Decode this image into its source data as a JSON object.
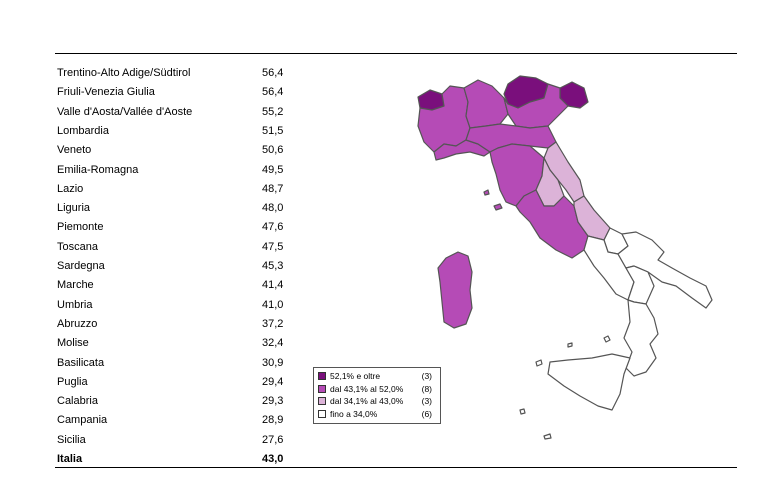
{
  "regions": [
    {
      "name": "Trentino-Alto Adige/Südtirol",
      "value": "56,4",
      "class": 0
    },
    {
      "name": "Friuli-Venezia Giulia",
      "value": "56,4",
      "class": 0
    },
    {
      "name": "Valle d'Aosta/Vallée d'Aoste",
      "value": "55,2",
      "class": 0
    },
    {
      "name": "Lombardia",
      "value": "51,5",
      "class": 1
    },
    {
      "name": "Veneto",
      "value": "50,6",
      "class": 1
    },
    {
      "name": "Emilia-Romagna",
      "value": "49,5",
      "class": 1
    },
    {
      "name": "Lazio",
      "value": "48,7",
      "class": 1
    },
    {
      "name": "Liguria",
      "value": "48,0",
      "class": 1
    },
    {
      "name": "Piemonte",
      "value": "47,6",
      "class": 1
    },
    {
      "name": "Toscana",
      "value": "47,5",
      "class": 1
    },
    {
      "name": "Sardegna",
      "value": "45,3",
      "class": 1
    },
    {
      "name": "Marche",
      "value": "41,4",
      "class": 2
    },
    {
      "name": "Umbria",
      "value": "41,0",
      "class": 2
    },
    {
      "name": "Abruzzo",
      "value": "37,2",
      "class": 2
    },
    {
      "name": "Molise",
      "value": "32,4",
      "class": 3
    },
    {
      "name": "Basilicata",
      "value": "30,9",
      "class": 3
    },
    {
      "name": "Puglia",
      "value": "29,4",
      "class": 3
    },
    {
      "name": "Calabria",
      "value": "29,3",
      "class": 3
    },
    {
      "name": "Campania",
      "value": "28,9",
      "class": 3
    },
    {
      "name": "Sicilia",
      "value": "27,6",
      "class": 3
    }
  ],
  "total": {
    "name": "Italia",
    "value": "43,0"
  },
  "legend": [
    {
      "label": "52,1% e oltre",
      "count": "(3)",
      "color": "#7a0f7c"
    },
    {
      "label": "dal 43,1% al 52,0%",
      "count": "(8)",
      "color": "#b54bb6"
    },
    {
      "label": "dal 34,1% al 43,0%",
      "count": "(3)",
      "color": "#dcb3d8"
    },
    {
      "label": "fino a 34,0%",
      "count": "(6)",
      "color": "#ffffff"
    }
  ]
}
